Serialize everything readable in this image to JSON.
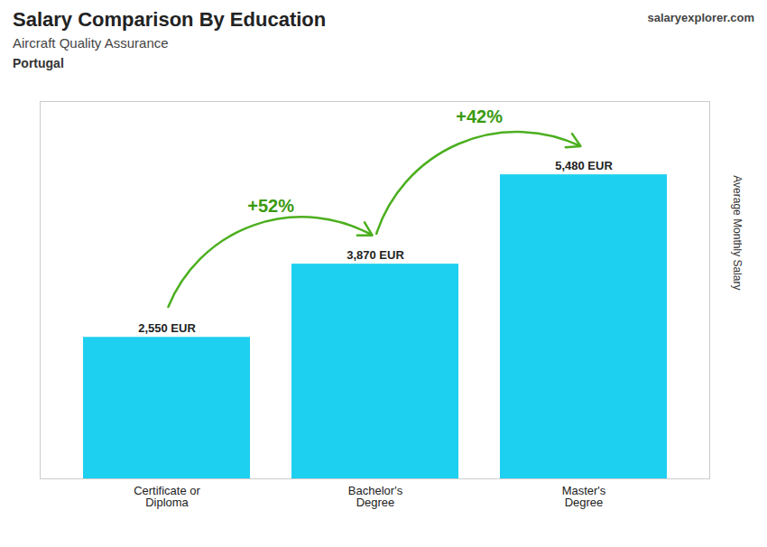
{
  "chart_data": {
    "type": "bar",
    "title": "Salary Comparison By Education",
    "subtitle": "Aircraft Quality Assurance",
    "annotations": [
      "+52%",
      "+42%",
      "Portugal",
      "salaryexplorer.com"
    ],
    "ylabel": "Average Monthly Salary",
    "categories": [
      "Certificate or\nDiploma",
      "Bachelor's\nDegree",
      "Master's\nDegree"
    ],
    "values": [
      2550,
      3870,
      5480
    ],
    "value_labels": [
      "2,550 EUR",
      "3,870 EUR",
      "5,480 EUR"
    ],
    "data_labels": true,
    "color": "#1ed0f0",
    "ylim": [
      0,
      6800
    ],
    "tick_labels": "x"
  }
}
